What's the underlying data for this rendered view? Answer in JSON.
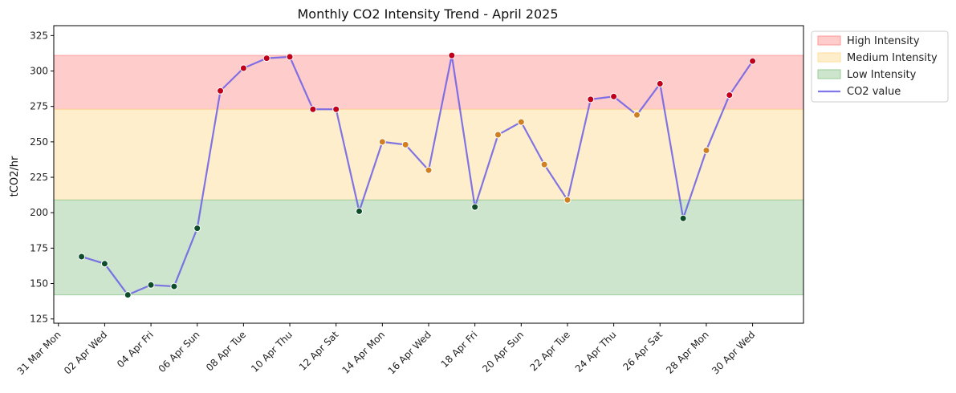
{
  "chart_data": {
    "type": "line",
    "title": "Monthly CO2 Intensity Trend - April 2025",
    "xlabel": "",
    "ylabel": "tCO2/hr",
    "ylim": [
      122,
      332
    ],
    "xlim": [
      "2025-03-30T19:12",
      "2025-05-02T04:48"
    ],
    "yticks": [
      125,
      150,
      175,
      200,
      225,
      250,
      275,
      300,
      325
    ],
    "xticks": [
      {
        "date": "2025-03-31",
        "label": "31 Mar Mon"
      },
      {
        "date": "2025-04-02",
        "label": "02 Apr Wed"
      },
      {
        "date": "2025-04-04",
        "label": "04 Apr Fri"
      },
      {
        "date": "2025-04-06",
        "label": "06 Apr Sun"
      },
      {
        "date": "2025-04-08",
        "label": "08 Apr Tue"
      },
      {
        "date": "2025-04-10",
        "label": "10 Apr Thu"
      },
      {
        "date": "2025-04-12",
        "label": "12 Apr Sat"
      },
      {
        "date": "2025-04-14",
        "label": "14 Apr Mon"
      },
      {
        "date": "2025-04-16",
        "label": "16 Apr Wed"
      },
      {
        "date": "2025-04-18",
        "label": "18 Apr Fri"
      },
      {
        "date": "2025-04-20",
        "label": "20 Apr Sun"
      },
      {
        "date": "2025-04-22",
        "label": "22 Apr Tue"
      },
      {
        "date": "2025-04-24",
        "label": "24 Apr Thu"
      },
      {
        "date": "2025-04-26",
        "label": "26 Apr Sat"
      },
      {
        "date": "2025-04-28",
        "label": "28 Apr Mon"
      },
      {
        "date": "2025-04-30",
        "label": "30 Apr Wed"
      }
    ],
    "bands": [
      {
        "name": "High Intensity",
        "y0": 273,
        "y1": 311,
        "color": "#ff9999"
      },
      {
        "name": "Medium Intensity",
        "y0": 209,
        "y1": 273,
        "color": "#ffdd99"
      },
      {
        "name": "Low Intensity",
        "y0": 142,
        "y1": 209,
        "color": "#99cc99"
      }
    ],
    "series": [
      {
        "name": "CO2 value",
        "color": "#6a5ee6",
        "x": [
          "2025-04-01",
          "2025-04-02",
          "2025-04-03",
          "2025-04-04",
          "2025-04-05",
          "2025-04-06",
          "2025-04-07",
          "2025-04-08",
          "2025-04-09",
          "2025-04-10",
          "2025-04-11",
          "2025-04-12",
          "2025-04-13",
          "2025-04-14",
          "2025-04-15",
          "2025-04-16",
          "2025-04-17",
          "2025-04-18",
          "2025-04-19",
          "2025-04-20",
          "2025-04-21",
          "2025-04-22",
          "2025-04-23",
          "2025-04-24",
          "2025-04-25",
          "2025-04-26",
          "2025-04-27",
          "2025-04-28",
          "2025-04-29",
          "2025-04-30"
        ],
        "y": [
          169,
          164,
          142,
          149,
          148,
          189,
          286,
          302,
          309,
          310,
          273,
          273,
          201,
          250,
          248,
          230,
          311,
          204,
          255,
          264,
          234,
          209,
          280,
          282,
          269,
          291,
          196,
          244,
          283,
          307
        ]
      }
    ],
    "marker_colors": {
      "high": "#c0001a",
      "medium": "#d08020",
      "low": "#0e4d2a"
    },
    "grid": false,
    "legend": "top-right"
  }
}
